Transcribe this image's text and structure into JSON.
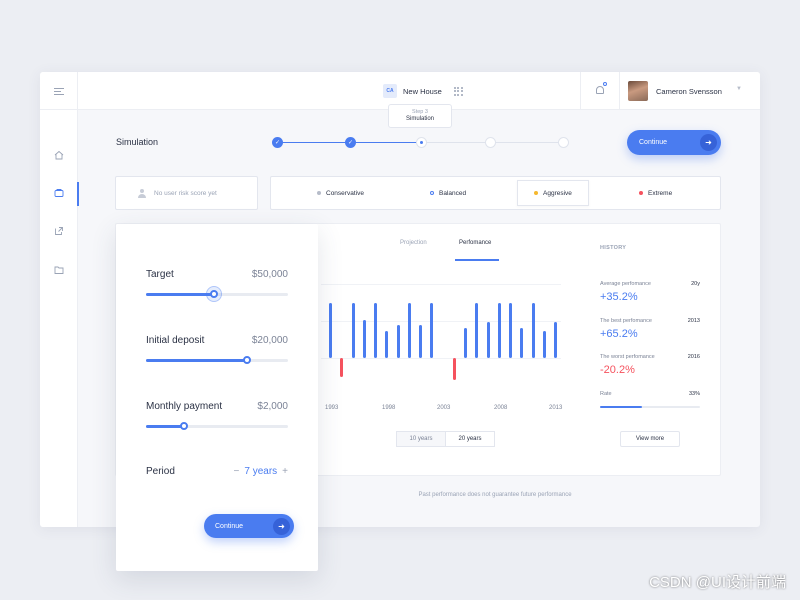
{
  "header": {
    "project_badge": "CA",
    "project_name": "New House",
    "user_name": "Cameron Svensson"
  },
  "simulation": {
    "title": "Simulation",
    "steps": [
      {
        "state": "done"
      },
      {
        "state": "done"
      },
      {
        "state": "current"
      },
      {
        "state": "todo"
      },
      {
        "state": "todo"
      }
    ],
    "tooltip_step": "Step 3",
    "tooltip_title": "Simulation",
    "continue_label": "Continue"
  },
  "risk": {
    "no_score_label": "No user risk score yet",
    "options": [
      {
        "label": "Conservative",
        "color": "#b6bcc9"
      },
      {
        "label": "Balanced",
        "color": "#4a7cf0"
      },
      {
        "label": "Aggresive",
        "color": "#f5b82e"
      },
      {
        "label": "Extreme",
        "color": "#f5525e"
      }
    ],
    "selected": "Aggresive"
  },
  "chart": {
    "tabs": [
      "Projection",
      "Perfomance"
    ],
    "active_tab": "Perfomance",
    "range_options": [
      "10 years",
      "20 years"
    ],
    "selected_range": "20 years"
  },
  "chart_data": {
    "type": "bar",
    "x": [
      1993,
      1994,
      1995,
      1996,
      1997,
      1998,
      1999,
      2000,
      2001,
      2002,
      2003,
      2004,
      2005,
      2006,
      2007,
      2008,
      2009,
      2010,
      2011,
      2012,
      2013
    ],
    "values": [
      10,
      -3.5,
      10,
      7,
      10,
      5,
      6,
      10,
      6,
      10,
      0,
      -4,
      5.5,
      10,
      6.5,
      10,
      10,
      5.5,
      10,
      5,
      6.5
    ],
    "xtick_labels": [
      "1993",
      "1998",
      "2003",
      "2008",
      "2013"
    ],
    "positive_color": "#4a7cf0",
    "negative_color": "#f5525e"
  },
  "history": {
    "title": "HISTORY",
    "items": [
      {
        "label": "Average perfomance",
        "aside": "20y",
        "value": "+35.2%",
        "color": "#4a7cf0"
      },
      {
        "label": "The best perfomance",
        "aside": "2013",
        "value": "+65.2%",
        "color": "#4a7cf0"
      },
      {
        "label": "The worst perfomance",
        "aside": "2016",
        "value": "-20.2%",
        "color": "#f5525e"
      }
    ],
    "rate_label": "Rate",
    "rate_value": "33%",
    "rate_fraction": 0.42,
    "view_more_label": "View more"
  },
  "disclaimer": "Past performance does not guarantee future performance",
  "calculator": {
    "target_label": "Target",
    "target_value": "$50,000",
    "target_fraction": 0.48,
    "deposit_label": "Initial deposit",
    "deposit_value": "$20,000",
    "deposit_fraction": 0.71,
    "monthly_label": "Monthly payment",
    "monthly_value": "$2,000",
    "monthly_fraction": 0.27,
    "period_label": "Period",
    "period_minus": "−",
    "period_value": "7 years",
    "period_plus": "+",
    "continue_label": "Continue"
  },
  "watermark": "CSDN @UI设计前端"
}
